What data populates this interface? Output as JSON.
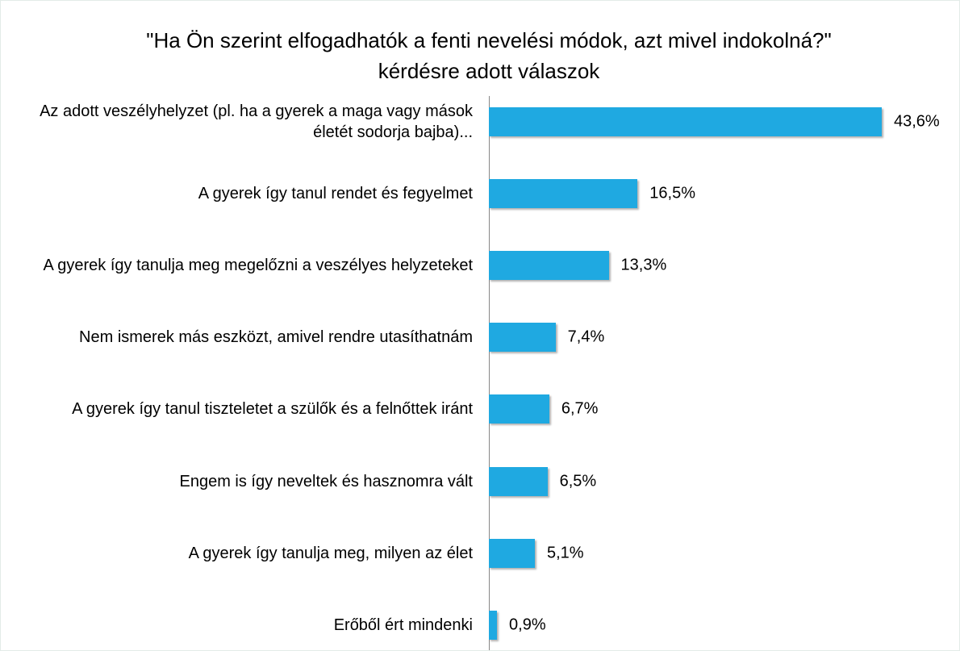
{
  "chart_data": {
    "type": "bar",
    "orientation": "horizontal",
    "title": "\"Ha Ön szerint elfogadhatók a fenti nevelési módok, azt mivel indokolná?\" kérdésre adott válaszok",
    "categories": [
      "Az adott veszélyhelyzet (pl. ha a gyerek a maga vagy mások életét sodorja bajba)...",
      "A gyerek így tanul rendet és fegyelmet",
      "A gyerek így tanulja meg megelőzni a veszélyes helyzeteket",
      "Nem ismerek más eszközt, amivel rendre utasíthatnám",
      "A gyerek így tanul tiszteletet a szülők és a felnőttek iránt",
      "Engem is így neveltek és hasznomra vált",
      "A gyerek így tanulja meg, milyen az élet",
      "Erőből ért mindenki"
    ],
    "values": [
      43.6,
      16.5,
      13.3,
      7.4,
      6.7,
      6.5,
      5.1,
      0.9
    ],
    "value_labels": [
      "43,6%",
      "16,5%",
      "13,3%",
      "7,4%",
      "6,7%",
      "6,5%",
      "5,1%",
      "0,9%"
    ],
    "color": "#1fa9e1"
  }
}
